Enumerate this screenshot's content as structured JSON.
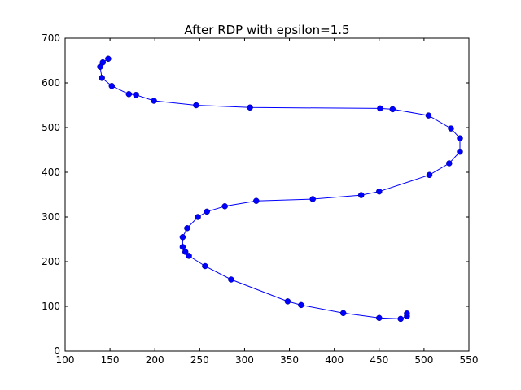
{
  "chart_data": {
    "type": "line",
    "title": "After RDP with epsilon=1.5",
    "xlabel": "",
    "ylabel": "",
    "xlim": [
      100,
      550
    ],
    "ylim": [
      0,
      700
    ],
    "x_ticks": [
      100,
      150,
      200,
      250,
      300,
      350,
      400,
      450,
      500,
      550
    ],
    "y_ticks": [
      0,
      100,
      200,
      300,
      400,
      500,
      600,
      700
    ],
    "grid": false,
    "series": [
      {
        "color": "#0000ff",
        "marker": "circle",
        "points": [
          [
            148,
            654
          ],
          [
            142,
            646
          ],
          [
            139,
            636
          ],
          [
            141,
            611
          ],
          [
            152,
            593
          ],
          [
            171,
            575
          ],
          [
            179,
            573
          ],
          [
            199,
            560
          ],
          [
            246,
            550
          ],
          [
            306,
            545
          ],
          [
            451,
            543
          ],
          [
            465,
            541
          ],
          [
            505,
            527
          ],
          [
            530,
            498
          ],
          [
            540,
            476
          ],
          [
            540,
            446
          ],
          [
            528,
            420
          ],
          [
            506,
            394
          ],
          [
            450,
            357
          ],
          [
            430,
            349
          ],
          [
            376,
            340
          ],
          [
            313,
            336
          ],
          [
            278,
            324
          ],
          [
            258,
            312
          ],
          [
            248,
            300
          ],
          [
            236,
            275
          ],
          [
            231,
            255
          ],
          [
            231,
            233
          ],
          [
            234,
            222
          ],
          [
            238,
            213
          ],
          [
            256,
            190
          ],
          [
            285,
            160
          ],
          [
            348,
            111
          ],
          [
            363,
            103
          ],
          [
            410,
            85
          ],
          [
            450,
            74
          ],
          [
            474,
            72
          ],
          [
            481,
            78
          ],
          [
            481,
            84
          ]
        ]
      }
    ]
  }
}
